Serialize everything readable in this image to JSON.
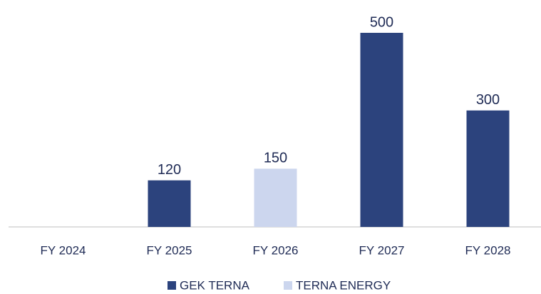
{
  "chart_data": {
    "type": "bar",
    "stacked": true,
    "categories": [
      "FY 2024",
      "FY 2025",
      "FY 2026",
      "FY 2027",
      "FY 2028"
    ],
    "series": [
      {
        "name": "GEK TERNA",
        "color": "#2c437d",
        "values": [
          null,
          120,
          null,
          500,
          300
        ]
      },
      {
        "name": "TERNA ENERGY",
        "color": "#ccd6ee",
        "values": [
          null,
          null,
          150,
          null,
          null
        ]
      }
    ],
    "legend": "bottom"
  }
}
